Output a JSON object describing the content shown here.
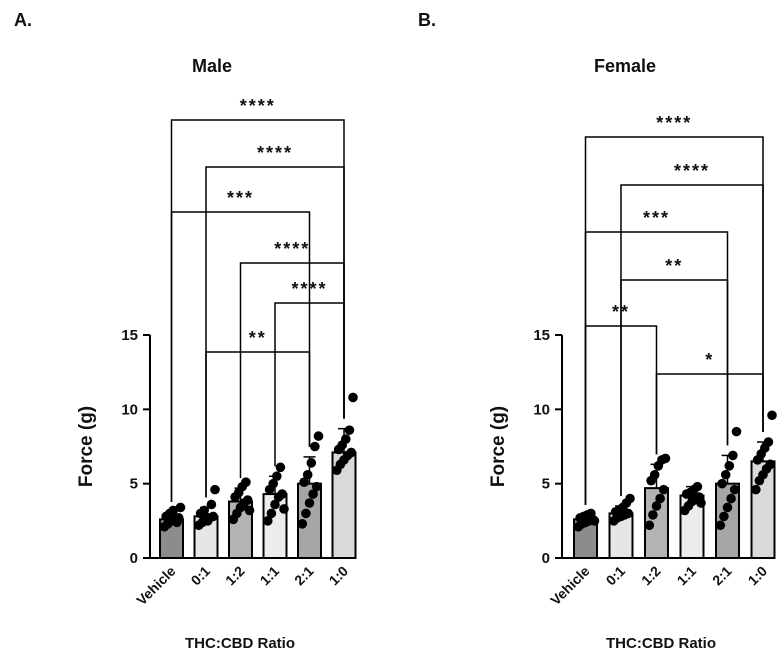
{
  "panels": {
    "a_label": "A.",
    "b_label": "B."
  },
  "chart_data": [
    {
      "type": "bar",
      "title": "Male",
      "xlabel": "THC:CBD Ratio",
      "ylabel": "Force (g)",
      "ylim": [
        0,
        15
      ],
      "yticks": [
        "0",
        "5",
        "10",
        "15"
      ],
      "categories": [
        "Vehicle",
        "0:1",
        "1:2",
        "1:1",
        "2:1",
        "1:0"
      ],
      "values": [
        2.6,
        2.8,
        3.8,
        4.3,
        5.0,
        7.1
      ],
      "errors": [
        0.5,
        0.6,
        0.9,
        1.2,
        1.8,
        1.6
      ],
      "bar_colors": [
        "#8c8c8c",
        "#e6e6e6",
        "#b3b3b3",
        "#ececec",
        "#a6a6a6",
        "#d9d9d9"
      ],
      "points": [
        [
          2.1,
          2.3,
          2.5,
          2.6,
          2.7,
          2.8,
          3.0,
          3.2,
          2.4,
          3.4
        ],
        [
          2.2,
          2.4,
          2.6,
          2.7,
          2.8,
          3.0,
          3.2,
          2.5,
          3.6,
          4.6
        ],
        [
          2.6,
          3.0,
          3.4,
          3.7,
          3.9,
          4.1,
          4.4,
          4.8,
          5.1,
          3.2
        ],
        [
          2.5,
          3.0,
          3.6,
          4.1,
          4.3,
          4.6,
          5.0,
          5.5,
          6.1,
          3.3
        ],
        [
          2.3,
          3.0,
          3.7,
          4.3,
          4.8,
          5.1,
          5.6,
          6.4,
          7.5,
          8.2
        ],
        [
          5.9,
          6.3,
          6.6,
          6.9,
          7.1,
          7.3,
          7.6,
          8.0,
          8.6,
          10.8
        ]
      ],
      "comparisons": [
        {
          "from": 0,
          "to": 5,
          "label": "****"
        },
        {
          "from": 1,
          "to": 5,
          "label": "****"
        },
        {
          "from": 0,
          "to": 4,
          "label": "***"
        },
        {
          "from": 2,
          "to": 5,
          "label": "****"
        },
        {
          "from": 3,
          "to": 5,
          "label": "****"
        },
        {
          "from": 1,
          "to": 4,
          "label": "**"
        },
        {
          "from": 4,
          "to": 5,
          "label": "**"
        }
      ]
    },
    {
      "type": "bar",
      "title": "Female",
      "xlabel": "THC:CBD Ratio",
      "ylabel": "Force (g)",
      "ylim": [
        0,
        15
      ],
      "yticks": [
        "0",
        "5",
        "10",
        "15"
      ],
      "categories": [
        "Vehicle",
        "0:1",
        "1:2",
        "1:1",
        "2:1",
        "1:0"
      ],
      "values": [
        2.6,
        3.0,
        4.7,
        4.2,
        5.0,
        6.5
      ],
      "errors": [
        0.3,
        0.5,
        1.6,
        0.6,
        1.9,
        1.3
      ],
      "bar_colors": [
        "#8c8c8c",
        "#e6e6e6",
        "#b3b3b3",
        "#ececec",
        "#a6a6a6",
        "#d9d9d9"
      ],
      "points": [
        [
          2.1,
          2.3,
          2.4,
          2.5,
          2.6,
          2.7,
          2.8,
          2.9,
          3.0,
          2.5
        ],
        [
          2.5,
          2.7,
          2.8,
          2.9,
          3.0,
          3.1,
          3.2,
          3.4,
          3.7,
          4.0
        ],
        [
          2.2,
          2.9,
          3.5,
          4.0,
          4.6,
          5.2,
          5.6,
          6.2,
          6.6,
          6.7
        ],
        [
          3.2,
          3.5,
          3.8,
          4.0,
          4.1,
          4.3,
          4.4,
          4.6,
          4.8,
          3.7
        ],
        [
          2.2,
          2.8,
          3.4,
          4.0,
          4.6,
          5.0,
          5.6,
          6.2,
          6.9,
          8.5
        ],
        [
          4.6,
          5.2,
          5.6,
          6.0,
          6.3,
          6.6,
          7.0,
          7.4,
          7.8,
          9.6
        ]
      ],
      "comparisons": [
        {
          "from": 0,
          "to": 5,
          "label": "****"
        },
        {
          "from": 1,
          "to": 5,
          "label": "****"
        },
        {
          "from": 0,
          "to": 4,
          "label": "***"
        },
        {
          "from": 1,
          "to": 4,
          "label": "**"
        },
        {
          "from": 0,
          "to": 2,
          "label": "**"
        },
        {
          "from": 2,
          "to": 5,
          "label": "*"
        },
        {
          "from": 1,
          "to": 2,
          "label": "*"
        },
        {
          "from": 3,
          "to": 5,
          "label": "***"
        }
      ]
    }
  ]
}
